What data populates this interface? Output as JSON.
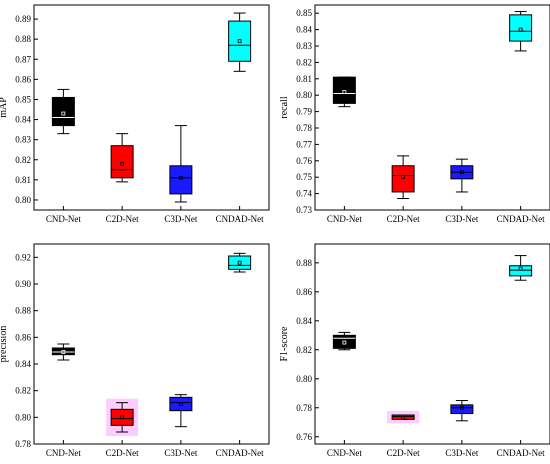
{
  "chart_data": [
    {
      "type": "box",
      "ylabel": "mAP",
      "ylim": [
        0.795,
        0.897
      ],
      "yticks": [
        "0.80",
        "0.81",
        "0.82",
        "0.83",
        "0.84",
        "0.85",
        "0.86",
        "0.87",
        "0.88",
        "0.89"
      ],
      "categories": [
        "CND-Net",
        "C2D-Net",
        "C3D-Net",
        "CNDAD-Net"
      ],
      "boxes": [
        {
          "category": "CND-Net",
          "min": 0.833,
          "q1": 0.837,
          "median": 0.841,
          "q3": 0.851,
          "max": 0.855,
          "mean": 0.843,
          "fill": "#000000"
        },
        {
          "category": "C2D-Net",
          "min": 0.809,
          "q1": 0.811,
          "median": 0.815,
          "q3": 0.827,
          "max": 0.833,
          "mean": 0.818,
          "fill": "#ff0000"
        },
        {
          "category": "C3D-Net",
          "min": 0.799,
          "q1": 0.803,
          "median": 0.811,
          "q3": 0.817,
          "max": 0.837,
          "mean": 0.811,
          "fill": "#1a1aff"
        },
        {
          "category": "CNDAD-Net",
          "min": 0.864,
          "q1": 0.869,
          "median": 0.877,
          "q3": 0.889,
          "max": 0.893,
          "mean": 0.879,
          "fill": "#00ffff"
        }
      ]
    },
    {
      "type": "box",
      "ylabel": "recall",
      "ylim": [
        0.73,
        0.855
      ],
      "yticks": [
        "0.73",
        "0.74",
        "0.75",
        "0.76",
        "0.77",
        "0.78",
        "0.79",
        "0.80",
        "0.81",
        "0.82",
        "0.83",
        "0.84",
        "0.85"
      ],
      "categories": [
        "CND-Net",
        "C2D-Net",
        "C3D-Net",
        "CNDAD-Net"
      ],
      "boxes": [
        {
          "category": "CND-Net",
          "min": 0.793,
          "q1": 0.795,
          "median": 0.801,
          "q3": 0.811,
          "max": 0.811,
          "mean": 0.802,
          "fill": "#000000"
        },
        {
          "category": "C2D-Net",
          "min": 0.737,
          "q1": 0.741,
          "median": 0.751,
          "q3": 0.757,
          "max": 0.763,
          "mean": 0.75,
          "fill": "#ff0000"
        },
        {
          "category": "C3D-Net",
          "min": 0.741,
          "q1": 0.749,
          "median": 0.753,
          "q3": 0.757,
          "max": 0.761,
          "mean": 0.753,
          "fill": "#1a1aff"
        },
        {
          "category": "CNDAD-Net",
          "min": 0.827,
          "q1": 0.833,
          "median": 0.839,
          "q3": 0.849,
          "max": 0.851,
          "mean": 0.84,
          "fill": "#00ffff"
        }
      ]
    },
    {
      "type": "box",
      "ylabel": "precision",
      "ylim": [
        0.78,
        0.93
      ],
      "yticks": [
        "0.78",
        "0.80",
        "0.82",
        "0.84",
        "0.86",
        "0.88",
        "0.90",
        "0.92"
      ],
      "categories": [
        "CND-Net",
        "C2D-Net",
        "C3D-Net",
        "CNDAD-Net"
      ],
      "boxes": [
        {
          "category": "CND-Net",
          "min": 0.843,
          "q1": 0.847,
          "median": 0.849,
          "q3": 0.852,
          "max": 0.855,
          "mean": 0.849,
          "fill": "#000000"
        },
        {
          "category": "C2D-Net",
          "min": 0.789,
          "q1": 0.794,
          "median": 0.799,
          "q3": 0.806,
          "max": 0.811,
          "mean": 0.8,
          "fill": "#ff0000",
          "highlight": "#ffccff"
        },
        {
          "category": "C3D-Net",
          "min": 0.793,
          "q1": 0.805,
          "median": 0.811,
          "q3": 0.815,
          "max": 0.817,
          "mean": 0.81,
          "fill": "#1a1aff"
        },
        {
          "category": "CNDAD-Net",
          "min": 0.909,
          "q1": 0.911,
          "median": 0.914,
          "q3": 0.921,
          "max": 0.923,
          "mean": 0.916,
          "fill": "#00ffff"
        }
      ]
    },
    {
      "type": "box",
      "ylabel": "F1-score",
      "ylim": [
        0.755,
        0.893
      ],
      "yticks": [
        "0.76",
        "0.78",
        "0.80",
        "0.82",
        "0.84",
        "0.86",
        "0.88"
      ],
      "categories": [
        "CND-Net",
        "C2D-Net",
        "C3D-Net",
        "CNDAD-Net"
      ],
      "boxes": [
        {
          "category": "CND-Net",
          "min": 0.82,
          "q1": 0.821,
          "median": 0.828,
          "q3": 0.83,
          "max": 0.832,
          "mean": 0.825,
          "fill": "#000000"
        },
        {
          "category": "C2D-Net",
          "min": 0.772,
          "q1": 0.772,
          "median": 0.774,
          "q3": 0.775,
          "max": 0.775,
          "mean": 0.773,
          "fill": "#ff0000",
          "highlight": "#ffccff"
        },
        {
          "category": "C3D-Net",
          "min": 0.771,
          "q1": 0.776,
          "median": 0.78,
          "q3": 0.782,
          "max": 0.785,
          "mean": 0.78,
          "fill": "#1a1aff"
        },
        {
          "category": "CNDAD-Net",
          "min": 0.868,
          "q1": 0.871,
          "median": 0.875,
          "q3": 0.878,
          "max": 0.885,
          "mean": 0.876,
          "fill": "#00ffff"
        }
      ]
    }
  ]
}
